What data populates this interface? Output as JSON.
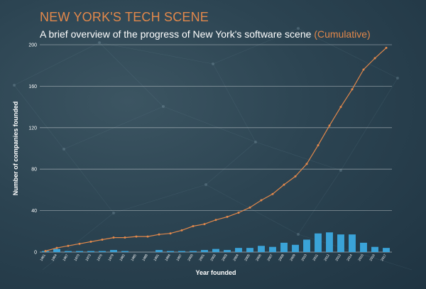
{
  "header": {
    "title": "NEW YORK'S TECH SCENE",
    "subtitle_main": "A brief overview of the progress of New York's software scene",
    "subtitle_accent": "(Cumulative)"
  },
  "colors": {
    "accent": "#e2884b",
    "bar": "#3aa3d8",
    "line": "#e2884b",
    "grid": "#ffffff",
    "text": "#ffffff"
  },
  "chart_data": {
    "type": "bar+line",
    "title": "NEW YORK'S TECH SCENE",
    "subtitle": "A brief overview of the progress of New York's software scene (Cumulative)",
    "xlabel": "Year founded",
    "ylabel": "Number of companies founded",
    "ylim": [
      0,
      200
    ],
    "yticks": [
      0,
      40,
      80,
      120,
      160,
      200
    ],
    "grid": "horizontal",
    "legend": "none",
    "x": [
      1961,
      1964,
      1967,
      1970,
      1973,
      1976,
      1979,
      1982,
      1985,
      1988,
      1991,
      1994,
      1997,
      2000,
      2001,
      2002,
      2003,
      2004,
      2005,
      2006,
      2007,
      2008,
      2009,
      2010,
      2011,
      2012,
      2013,
      2014,
      2015,
      2016,
      2017
    ],
    "series": [
      {
        "kind": "bar",
        "values": [
          1,
          3,
          1,
          1,
          1,
          1,
          2,
          1,
          0,
          0,
          2,
          1,
          1,
          1,
          2,
          3,
          2,
          4,
          4,
          6,
          5,
          9,
          7,
          12,
          18,
          19,
          17,
          17,
          9,
          5,
          4
        ]
      },
      {
        "kind": "line",
        "values": [
          1,
          4,
          6,
          8,
          10,
          12,
          14,
          14,
          15,
          15,
          17,
          18,
          21,
          25,
          27,
          31,
          34,
          38,
          43,
          50,
          56,
          65,
          73,
          85,
          103,
          122,
          140,
          157,
          176,
          187,
          197
        ]
      }
    ]
  }
}
